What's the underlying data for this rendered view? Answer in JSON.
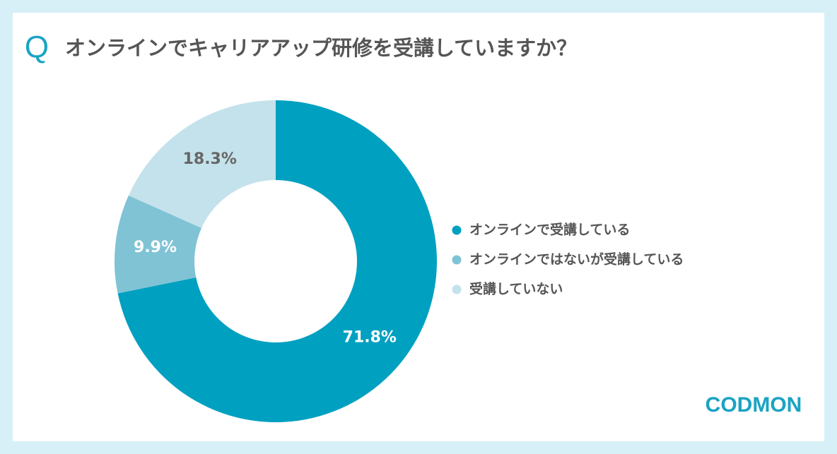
{
  "chart_data": {
    "type": "pie",
    "title_prefix": "Q",
    "title": "オンラインでキャリアアップ研修を受講していますか？",
    "categories": [
      "オンラインで受講している",
      "オンラインではないが受講している",
      "受講していない"
    ],
    "values": [
      71.8,
      9.9,
      18.3
    ],
    "value_labels": [
      "71.8%",
      "9.9%",
      "18.3%"
    ],
    "colors": [
      "#00a0c1",
      "#7fc3d5",
      "#c4e2eb"
    ],
    "donut": true,
    "logo": "CODMON"
  }
}
